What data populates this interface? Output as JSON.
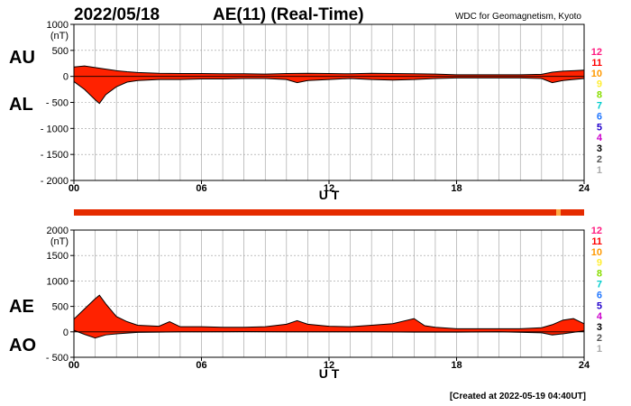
{
  "header": {
    "date": "2022/05/18",
    "title": "AE(11) (Real-Time)",
    "source": "WDC for Geomagnetism, Kyoto"
  },
  "footer": {
    "created": "[Created at 2022-05-19 04:40UT]"
  },
  "colors": {
    "fill": "#ff2200",
    "grid": "#9a9a9a",
    "strip": "#e52b00",
    "strip_mark": "#ffaa44",
    "legend": {
      "12": "#ff1a80",
      "11": "#ff0000",
      "10": "#ff9900",
      "9": "#ffee33",
      "8": "#88dd00",
      "7": "#00cccc",
      "6": "#2277ff",
      "5": "#2200cc",
      "4": "#cc00cc",
      "3": "#000000",
      "2": "#555555",
      "1": "#aaaaaa"
    }
  },
  "legend_numbers": [
    "12",
    "11",
    "10",
    "9",
    "8",
    "7",
    "6",
    "5",
    "4",
    "3",
    "2",
    "1"
  ],
  "xlabel": "U T",
  "x_ticks": [
    "00",
    "06",
    "12",
    "18",
    "24"
  ],
  "chart_data": [
    {
      "type": "area",
      "panel": "AU/AL",
      "labels_upper": "AU",
      "labels_lower": "AL",
      "unit": "(nT)",
      "ylim": [
        -2000,
        1000
      ],
      "y_ticks": [
        "1000",
        "500",
        "0",
        "- 500",
        "- 1000",
        "- 1500",
        "- 2000"
      ],
      "y_tick_values": [
        1000,
        500,
        0,
        -500,
        -1000,
        -1500,
        -2000
      ],
      "xlim": [
        0,
        24
      ],
      "upper_series": {
        "name": "AU",
        "x": [
          0,
          0.5,
          1,
          1.5,
          2,
          2.5,
          3,
          4,
          5,
          6,
          7,
          8,
          9,
          10,
          11,
          12,
          13,
          14,
          15,
          16,
          17,
          18,
          19,
          20,
          21,
          22,
          22.5,
          23,
          23.5,
          24
        ],
        "y": [
          180,
          200,
          170,
          140,
          110,
          90,
          75,
          60,
          55,
          55,
          50,
          50,
          45,
          55,
          60,
          55,
          50,
          60,
          55,
          50,
          45,
          30,
          30,
          30,
          30,
          40,
          80,
          100,
          110,
          120
        ]
      },
      "lower_series": {
        "name": "AL",
        "x": [
          0,
          0.5,
          1,
          1.2,
          1.5,
          2,
          2.5,
          3,
          4,
          5,
          6,
          7,
          8,
          9,
          10,
          10.5,
          11,
          12,
          13,
          14,
          15,
          16,
          17,
          18,
          19,
          20,
          21,
          22,
          22.5,
          23,
          23.5,
          24
        ],
        "y": [
          -100,
          -250,
          -450,
          -520,
          -350,
          -200,
          -110,
          -80,
          -60,
          -60,
          -50,
          -50,
          -40,
          -40,
          -60,
          -120,
          -80,
          -60,
          -40,
          -60,
          -70,
          -60,
          -40,
          -30,
          -30,
          -30,
          -30,
          -40,
          -120,
          -80,
          -60,
          -40
        ]
      }
    },
    {
      "type": "area",
      "panel": "AE/AO",
      "labels_upper": "AE",
      "labels_lower": "AO",
      "unit": "(nT)",
      "ylim": [
        -500,
        2000
      ],
      "y_ticks": [
        "2000",
        "1500",
        "1000",
        "500",
        "0",
        "- 500"
      ],
      "y_tick_values": [
        2000,
        1500,
        1000,
        500,
        0,
        -500
      ],
      "xlim": [
        0,
        24
      ],
      "upper_series": {
        "name": "AE",
        "x": [
          0,
          0.5,
          1,
          1.2,
          1.5,
          2,
          2.5,
          3,
          4,
          4.5,
          5,
          6,
          7,
          8,
          9,
          10,
          10.5,
          11,
          12,
          13,
          14,
          15,
          16,
          16.5,
          17,
          18,
          19,
          20,
          21,
          22,
          22.5,
          23,
          23.5,
          24
        ],
        "y": [
          250,
          450,
          650,
          720,
          550,
          300,
          200,
          130,
          110,
          200,
          100,
          100,
          90,
          90,
          100,
          150,
          220,
          150,
          110,
          100,
          130,
          160,
          260,
          120,
          90,
          60,
          60,
          60,
          60,
          80,
          140,
          230,
          260,
          160
        ]
      },
      "lower_series": {
        "name": "AO",
        "x": [
          0,
          0.5,
          1,
          1.5,
          2,
          3,
          4,
          5,
          6,
          8,
          10,
          12,
          14,
          16,
          18,
          20,
          22,
          22.5,
          23,
          24
        ],
        "y": [
          30,
          -50,
          -120,
          -60,
          -40,
          -10,
          -5,
          0,
          0,
          5,
          0,
          0,
          0,
          -5,
          -5,
          0,
          -20,
          -60,
          -40,
          20
        ]
      }
    }
  ]
}
